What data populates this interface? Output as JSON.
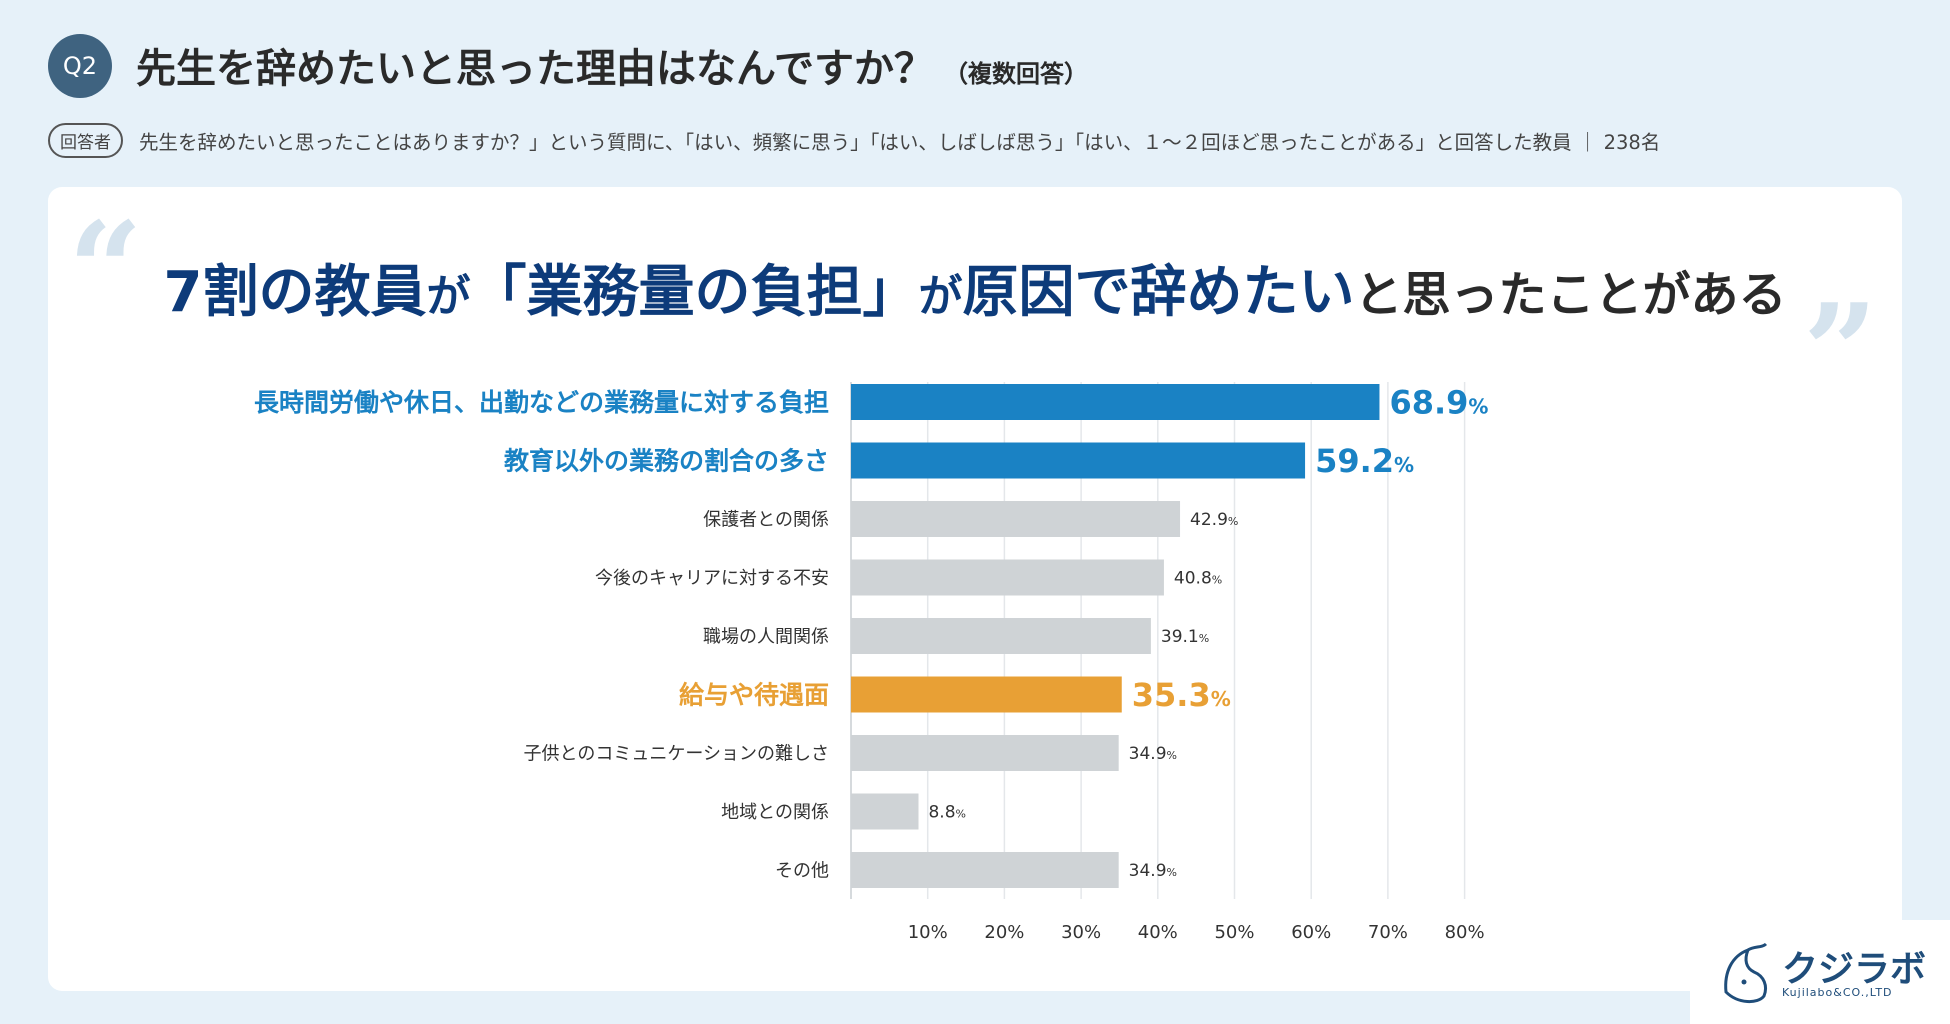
{
  "header": {
    "badge": "Q2",
    "title": "先生を辞めたいと思った理由はなんですか？",
    "note": "（複数回答）"
  },
  "respondents": {
    "tag": "回答者",
    "text": "先生を辞めたいと思ったことはありますか？」という質問に、「はい、頻繁に思う」「はい、しばしば思う」「はい、１〜２回ほど思ったことがある」と回答した教員 ｜ 238名"
  },
  "headline": {
    "part1": "7割の教員",
    "part2": "が",
    "part3": "「業務量の負担」",
    "part4": "が",
    "part5": "原因で辞めたい",
    "part6": "と思ったことがある"
  },
  "colors": {
    "primary": "#1a82c4",
    "secondary": "#1a82c4",
    "highlight": "#e8a035",
    "neutral": "#cfd3d6",
    "neutral_dark": "#c1c5c8"
  },
  "chart_data": {
    "type": "bar",
    "orientation": "horizontal",
    "unit": "%",
    "categories": [
      "長時間労働や休日、出勤などの業務量に対する負担",
      "教育以外の業務の割合の多さ",
      "保護者との関係",
      "今後のキャリアに対する不安",
      "職場の人間関係",
      "給与や待遇面",
      "子供とのコミュニケーションの難しさ",
      "地域との関係",
      "その他"
    ],
    "values": [
      68.9,
      59.2,
      42.9,
      40.8,
      39.1,
      35.3,
      34.9,
      8.8,
      34.9
    ],
    "value_labels": [
      "68.9",
      "59.2",
      "42.9",
      "40.8",
      "39.1",
      "35.3",
      "34.9",
      "8.8",
      "34.9"
    ],
    "emphasis": [
      "primary",
      "primary",
      "normal",
      "normal",
      "normal",
      "highlight",
      "normal",
      "normal",
      "normal"
    ],
    "xlim": [
      0,
      80
    ],
    "xticks": [
      10,
      20,
      30,
      40,
      50,
      60,
      70,
      80
    ],
    "xtick_labels": [
      "10%",
      "20%",
      "30%",
      "40%",
      "50%",
      "60%",
      "70%",
      "80%"
    ],
    "grid": true
  },
  "logo": {
    "name": "クジラボ",
    "company": "Kujilabo&CO.,LTD"
  }
}
